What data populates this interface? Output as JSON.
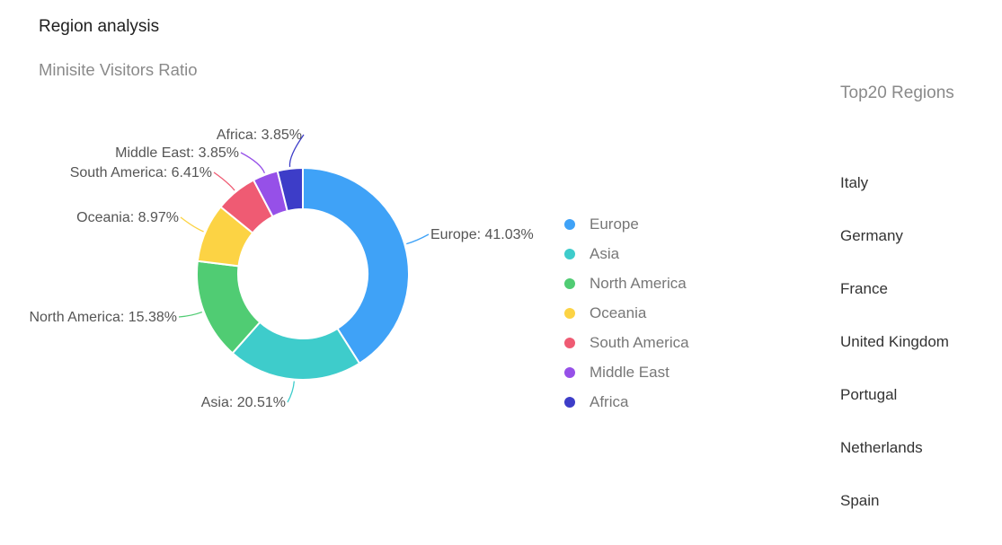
{
  "header": {
    "title": "Region analysis"
  },
  "chart_data": {
    "type": "pie",
    "donut": true,
    "title": "Minisite Visitors Ratio",
    "legend_position": "right",
    "slices": [
      {
        "name": "Europe",
        "value": 41.03,
        "label": "Europe: 41.03%",
        "color": "#3fa2f7"
      },
      {
        "name": "Asia",
        "value": 20.51,
        "label": "Asia: 20.51%",
        "color": "#3ecccb"
      },
      {
        "name": "North America",
        "value": 15.38,
        "label": "North America: 15.38%",
        "color": "#50cc73"
      },
      {
        "name": "Oceania",
        "value": 8.97,
        "label": "Oceania: 8.97%",
        "color": "#fcd344"
      },
      {
        "name": "South America",
        "value": 6.41,
        "label": "South America: 6.41%",
        "color": "#ef5b73"
      },
      {
        "name": "Middle East",
        "value": 3.85,
        "label": "Middle East: 3.85%",
        "color": "#9650e8"
      },
      {
        "name": "Africa",
        "value": 3.85,
        "label": "Africa: 3.85%",
        "color": "#3d3dc8"
      }
    ]
  },
  "top_regions": {
    "heading": "Top20 Regions",
    "items": [
      "Italy",
      "Germany",
      "France",
      "United Kingdom",
      "Portugal",
      "Netherlands",
      "Spain"
    ]
  }
}
